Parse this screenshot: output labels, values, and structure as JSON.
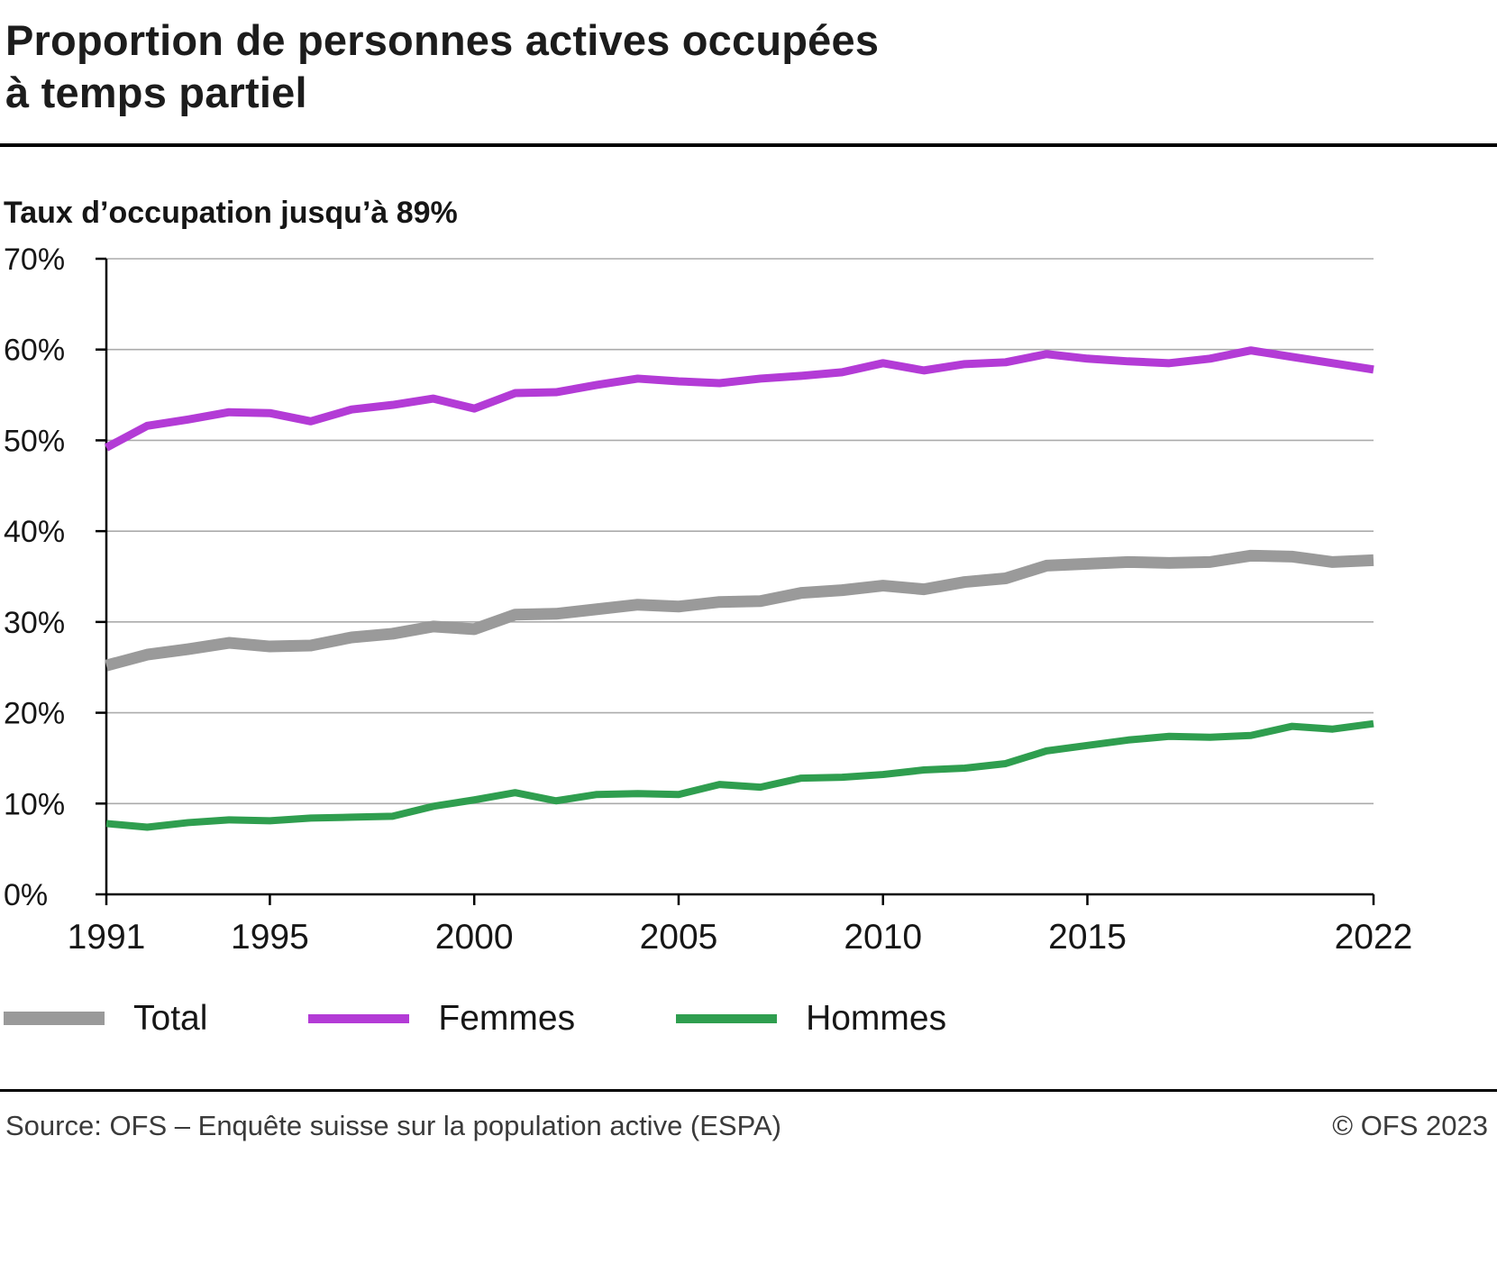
{
  "header": {
    "title_line1": "Proportion de personnes actives occupées",
    "title_line2": "à temps partiel",
    "subtitle": "Taux d’occupation jusqu’à 89%"
  },
  "legend": [
    {
      "label": "Total",
      "color": "#9a9a9a"
    },
    {
      "label": "Femmes",
      "color": "#b33bd6"
    },
    {
      "label": "Hommes",
      "color": "#2f9e4f"
    }
  ],
  "footer": {
    "source": "Source: OFS – Enquête suisse sur la population active (ESPA)",
    "copyright": "© OFS 2023"
  },
  "chart_data": {
    "type": "line",
    "title": "Proportion de personnes actives occupées à temps partiel",
    "subtitle": "Taux d’occupation jusqu’à 89%",
    "xlabel": "",
    "ylabel": "",
    "ylim": [
      0,
      70
    ],
    "ytick_step": 10,
    "ytick_suffix": "%",
    "grid": true,
    "legend_position": "bottom",
    "xticks": [
      1991,
      1995,
      2000,
      2005,
      2010,
      2015,
      2022
    ],
    "x": [
      1991,
      1992,
      1993,
      1994,
      1995,
      1996,
      1997,
      1998,
      1999,
      2000,
      2001,
      2002,
      2003,
      2004,
      2005,
      2006,
      2007,
      2008,
      2009,
      2010,
      2011,
      2012,
      2013,
      2014,
      2015,
      2016,
      2017,
      2018,
      2019,
      2020,
      2021,
      2022
    ],
    "series": [
      {
        "name": "Total",
        "color": "#9a9a9a",
        "values": [
          25.2,
          26.4,
          27.0,
          27.7,
          27.3,
          27.4,
          28.3,
          28.7,
          29.5,
          29.2,
          30.8,
          30.9,
          31.4,
          31.9,
          31.7,
          32.2,
          32.3,
          33.2,
          33.5,
          34.0,
          33.6,
          34.4,
          34.8,
          36.2,
          36.4,
          36.6,
          36.5,
          36.6,
          37.3,
          37.2,
          36.6,
          36.8
        ]
      },
      {
        "name": "Femmes",
        "color": "#b33bd6",
        "values": [
          49.2,
          51.6,
          52.3,
          53.1,
          53.0,
          52.1,
          53.4,
          53.9,
          54.6,
          53.5,
          55.2,
          55.3,
          56.1,
          56.8,
          56.5,
          56.3,
          56.8,
          57.1,
          57.5,
          58.5,
          57.7,
          58.4,
          58.6,
          59.5,
          59.0,
          58.7,
          58.5,
          59.0,
          59.9,
          59.2,
          58.5,
          57.8
        ]
      },
      {
        "name": "Hommes",
        "color": "#2f9e4f",
        "values": [
          7.8,
          7.4,
          7.9,
          8.2,
          8.1,
          8.4,
          8.5,
          8.6,
          9.7,
          10.4,
          11.2,
          10.3,
          11.0,
          11.1,
          11.0,
          12.1,
          11.8,
          12.8,
          12.9,
          13.2,
          13.7,
          13.9,
          14.4,
          15.8,
          16.4,
          17.0,
          17.4,
          17.3,
          17.5,
          18.5,
          18.2,
          18.8
        ]
      }
    ]
  }
}
